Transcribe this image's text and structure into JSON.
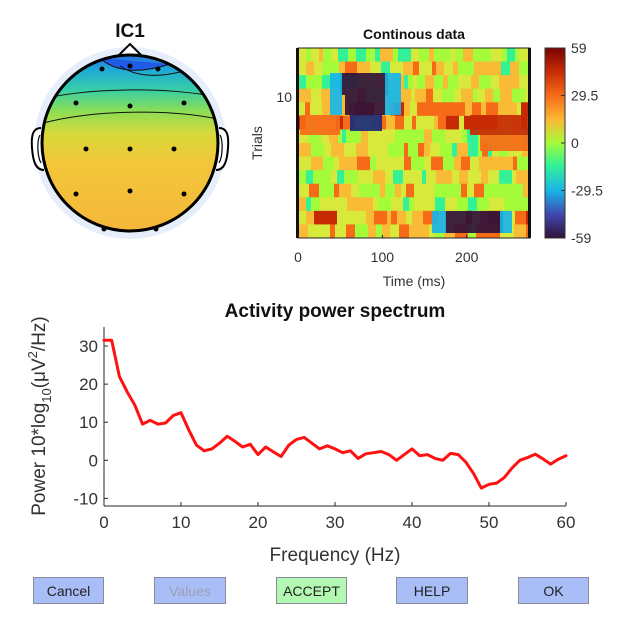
{
  "topomap": {
    "title": "IC1"
  },
  "colors": {
    "spectrum_line": "#ff1111",
    "button_default": "#a9bdf7",
    "button_accept": "#b2f7b2",
    "axis": "#262626"
  },
  "erpimage": {
    "title": "Continous data",
    "xlabel": "Time (ms)",
    "ylabel": "Trials",
    "xticks": [
      0,
      100,
      200
    ],
    "yticks": [
      10
    ],
    "xlim": [
      0,
      275
    ],
    "colorbar": {
      "labels": [
        "59",
        "29.5",
        "0",
        "-29.5",
        "-59"
      ],
      "range": [
        -59,
        59
      ]
    }
  },
  "chart_data": {
    "type": "line",
    "title": "Activity power spectrum",
    "xlabel": "Frequency (Hz)",
    "ylabel_prefix": "Power 10*log",
    "ylabel_sub": "10",
    "ylabel_mid": "(μV",
    "ylabel_sup": "2",
    "ylabel_suffix": "/Hz)",
    "xlim": [
      0,
      60
    ],
    "ylim": [
      -12,
      35
    ],
    "xticks": [
      0,
      10,
      20,
      30,
      40,
      50,
      60
    ],
    "yticks": [
      -10,
      0,
      10,
      20,
      30
    ],
    "grid": false,
    "series": [
      {
        "x": [
          0,
          1,
          2,
          3,
          4,
          5,
          6,
          7,
          8,
          9,
          10,
          11,
          12,
          13,
          14,
          15,
          16,
          17,
          18,
          19,
          20,
          21,
          22,
          23,
          24,
          25,
          26,
          27,
          28,
          29,
          30,
          31,
          32,
          33,
          34,
          35,
          36,
          37,
          38,
          39,
          40,
          41,
          42,
          43,
          44,
          45,
          46,
          47,
          48,
          49,
          50,
          51,
          52,
          53,
          54,
          55,
          56,
          57,
          58,
          59,
          60
        ],
        "values": [
          31.5,
          31.5,
          22,
          18,
          14.5,
          9.5,
          10.5,
          9.5,
          9.8,
          11.8,
          12.5,
          8,
          4,
          2.5,
          3,
          4.5,
          6.3,
          5,
          3.5,
          4.2,
          1.5,
          3.5,
          2.2,
          1,
          4,
          5.5,
          6,
          4.5,
          3,
          3.8,
          3,
          2,
          2.5,
          0.5,
          1.7,
          2,
          2.3,
          1.5,
          0,
          1.5,
          3,
          1.2,
          1.5,
          0.5,
          0,
          1.8,
          1.5,
          -0.5,
          -3.5,
          -7.3,
          -6.3,
          -6,
          -4.5,
          -2,
          0,
          0.7,
          1.6,
          0.4,
          -1,
          0.3,
          1.2
        ]
      }
    ]
  },
  "buttons": [
    {
      "label": "Cancel",
      "name": "cancel-button"
    },
    {
      "label": "Values",
      "name": "values-button"
    },
    {
      "label": "ACCEPT",
      "name": "accept-button"
    },
    {
      "label": "HELP",
      "name": "help-button"
    },
    {
      "label": "OK",
      "name": "ok-button"
    }
  ]
}
